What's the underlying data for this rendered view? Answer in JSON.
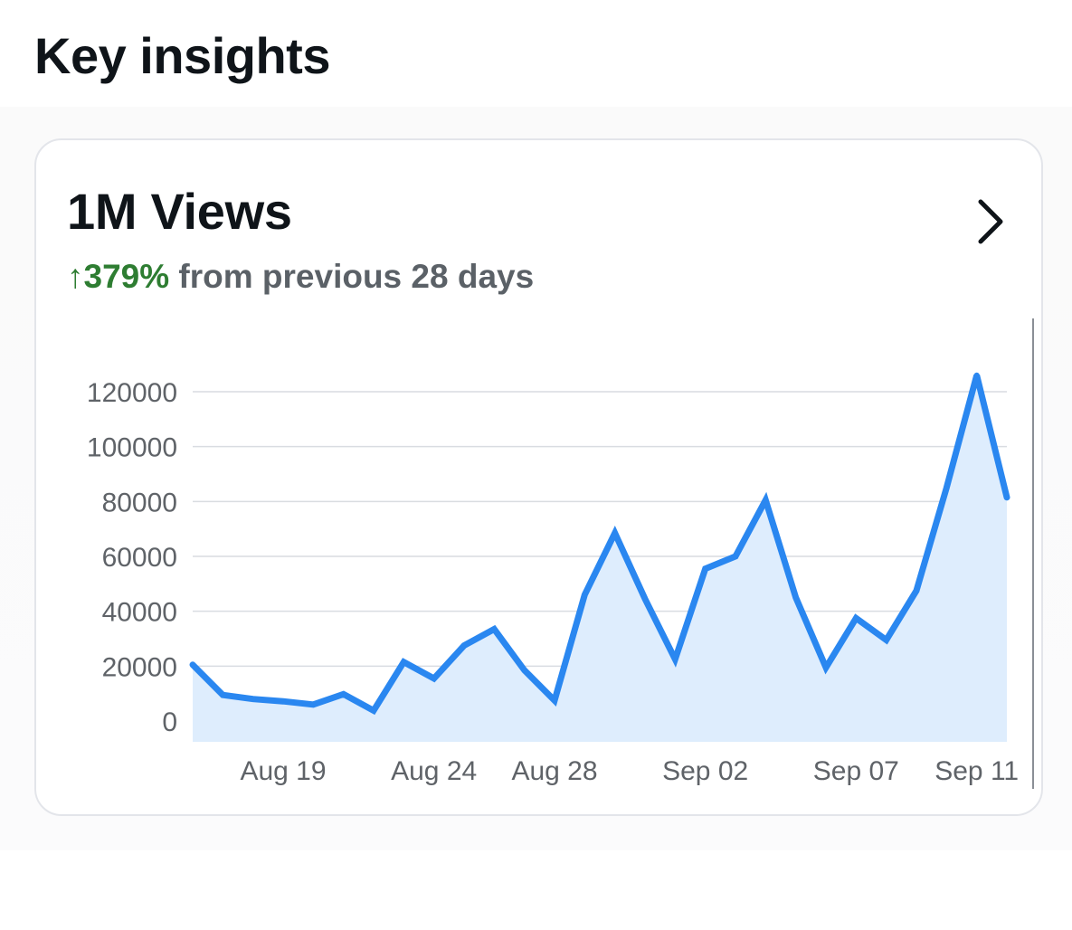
{
  "header": {
    "title": "Key insights"
  },
  "card": {
    "metric": "1M Views",
    "change_arrow": "↑",
    "change_value": "379%",
    "change_text": "from previous 28 days",
    "chevron_icon": "chevron-right-icon"
  },
  "colors": {
    "line": "#2a87f0",
    "fill": "#deedfd",
    "positive": "#2e7d32",
    "grid": "#d9dce1"
  },
  "chart_data": {
    "type": "area",
    "title": "",
    "xlabel": "",
    "ylabel": "",
    "ylim": [
      0,
      120000
    ],
    "y_ticks": [
      "120000",
      "100000",
      "80000",
      "60000",
      "40000",
      "20000",
      "0"
    ],
    "x_tick_labels": [
      "Aug 19",
      "Aug 24",
      "Aug 28",
      "Sep 02",
      "Sep 07",
      "Sep 11"
    ],
    "grid": true,
    "x": [
      "Aug 16",
      "Aug 17",
      "Aug 18",
      "Aug 19",
      "Aug 20",
      "Aug 21",
      "Aug 22",
      "Aug 23",
      "Aug 24",
      "Aug 25",
      "Aug 26",
      "Aug 27",
      "Aug 28",
      "Aug 29",
      "Aug 30",
      "Aug 31",
      "Sep 01",
      "Sep 02",
      "Sep 03",
      "Sep 04",
      "Sep 05",
      "Sep 06",
      "Sep 07",
      "Sep 08",
      "Sep 09",
      "Sep 10",
      "Sep 11",
      "Sep 12"
    ],
    "series": [
      {
        "values": [
          20500,
          9500,
          8000,
          7200,
          6000,
          9800,
          3800,
          21500,
          15500,
          27500,
          33500,
          18500,
          7500,
          46000,
          68500,
          44500,
          22500,
          55500,
          60000,
          80500,
          45000,
          19500,
          37500,
          29500,
          47500,
          85000,
          126000,
          81500
        ]
      }
    ]
  }
}
